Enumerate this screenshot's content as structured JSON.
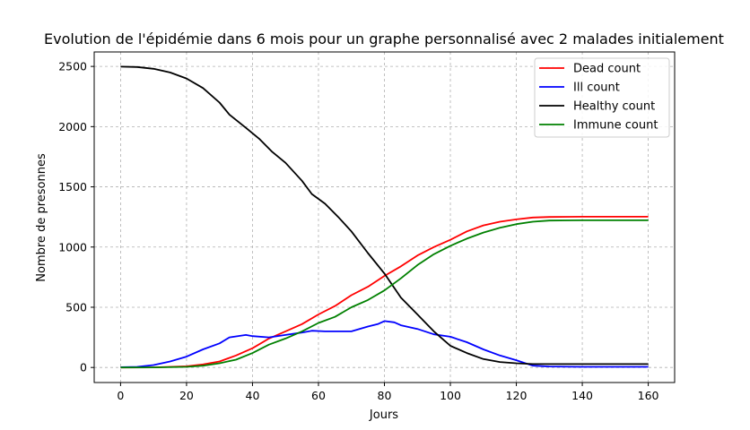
{
  "chart_data": {
    "type": "line",
    "title": "Evolution de l'épidémie dans 6 mois pour un graphe personnalisé avec 2 malades initialement",
    "xlabel": "Jours",
    "ylabel": "Nombre de presonnes",
    "xlim": [
      -8,
      168
    ],
    "ylim": [
      -125,
      2620
    ],
    "xticks": [
      0,
      20,
      40,
      60,
      80,
      100,
      120,
      140,
      160
    ],
    "yticks": [
      0,
      500,
      1000,
      1500,
      2000,
      2500
    ],
    "grid": true,
    "legend_position": "top-right",
    "series": [
      {
        "name": "Dead count",
        "color": "#ff0000",
        "points": [
          [
            0,
            0
          ],
          [
            10,
            1
          ],
          [
            20,
            10
          ],
          [
            25,
            25
          ],
          [
            30,
            50
          ],
          [
            35,
            100
          ],
          [
            40,
            160
          ],
          [
            45,
            240
          ],
          [
            50,
            300
          ],
          [
            55,
            360
          ],
          [
            60,
            440
          ],
          [
            65,
            510
          ],
          [
            70,
            600
          ],
          [
            75,
            670
          ],
          [
            80,
            760
          ],
          [
            85,
            840
          ],
          [
            90,
            930
          ],
          [
            95,
            1000
          ],
          [
            100,
            1060
          ],
          [
            105,
            1130
          ],
          [
            110,
            1180
          ],
          [
            115,
            1210
          ],
          [
            120,
            1230
          ],
          [
            125,
            1245
          ],
          [
            130,
            1250
          ],
          [
            140,
            1252
          ],
          [
            150,
            1252
          ],
          [
            160,
            1252
          ]
        ]
      },
      {
        "name": "Ill count",
        "color": "#0000ff",
        "points": [
          [
            0,
            2
          ],
          [
            5,
            5
          ],
          [
            10,
            20
          ],
          [
            15,
            50
          ],
          [
            20,
            90
          ],
          [
            25,
            150
          ],
          [
            30,
            200
          ],
          [
            33,
            250
          ],
          [
            38,
            270
          ],
          [
            40,
            260
          ],
          [
            45,
            250
          ],
          [
            50,
            270
          ],
          [
            55,
            290
          ],
          [
            58,
            305
          ],
          [
            62,
            300
          ],
          [
            70,
            300
          ],
          [
            75,
            340
          ],
          [
            78,
            360
          ],
          [
            80,
            385
          ],
          [
            83,
            375
          ],
          [
            85,
            350
          ],
          [
            90,
            320
          ],
          [
            95,
            275
          ],
          [
            100,
            255
          ],
          [
            105,
            210
          ],
          [
            110,
            150
          ],
          [
            115,
            100
          ],
          [
            120,
            60
          ],
          [
            125,
            15
          ],
          [
            130,
            8
          ],
          [
            140,
            5
          ],
          [
            160,
            5
          ]
        ]
      },
      {
        "name": "Healthy count",
        "color": "#000000",
        "points": [
          [
            0,
            2498
          ],
          [
            5,
            2495
          ],
          [
            10,
            2480
          ],
          [
            15,
            2450
          ],
          [
            20,
            2400
          ],
          [
            25,
            2320
          ],
          [
            30,
            2200
          ],
          [
            33,
            2100
          ],
          [
            38,
            1990
          ],
          [
            42,
            1900
          ],
          [
            46,
            1790
          ],
          [
            50,
            1700
          ],
          [
            55,
            1550
          ],
          [
            58,
            1440
          ],
          [
            62,
            1360
          ],
          [
            66,
            1250
          ],
          [
            70,
            1130
          ],
          [
            75,
            950
          ],
          [
            80,
            780
          ],
          [
            85,
            580
          ],
          [
            90,
            440
          ],
          [
            95,
            300
          ],
          [
            100,
            180
          ],
          [
            105,
            120
          ],
          [
            110,
            70
          ],
          [
            115,
            45
          ],
          [
            120,
            35
          ],
          [
            125,
            28
          ],
          [
            140,
            28
          ],
          [
            160,
            28
          ]
        ]
      },
      {
        "name": "Immune count",
        "color": "#008000",
        "points": [
          [
            0,
            0
          ],
          [
            10,
            1
          ],
          [
            20,
            5
          ],
          [
            25,
            15
          ],
          [
            30,
            35
          ],
          [
            35,
            65
          ],
          [
            40,
            120
          ],
          [
            45,
            190
          ],
          [
            50,
            240
          ],
          [
            55,
            300
          ],
          [
            60,
            370
          ],
          [
            65,
            420
          ],
          [
            70,
            500
          ],
          [
            75,
            560
          ],
          [
            80,
            640
          ],
          [
            85,
            740
          ],
          [
            90,
            850
          ],
          [
            95,
            940
          ],
          [
            100,
            1010
          ],
          [
            105,
            1070
          ],
          [
            110,
            1120
          ],
          [
            115,
            1160
          ],
          [
            120,
            1190
          ],
          [
            125,
            1210
          ],
          [
            130,
            1220
          ],
          [
            140,
            1222
          ],
          [
            160,
            1222
          ]
        ]
      }
    ]
  }
}
